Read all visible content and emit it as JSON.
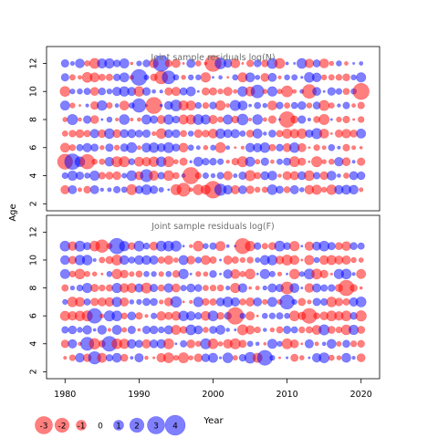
{
  "chart_data": {
    "type": "scatter",
    "encoding": "bubble residuals: circle area ~ |residual|, red = negative, blue = positive",
    "colors": {
      "negative": "#ff0000",
      "positive": "#0000ff"
    },
    "ylabel": "Age",
    "xlabel": "Year",
    "xlim": [
      1977.5,
      2022.5
    ],
    "xticks": [
      1980,
      1990,
      2000,
      2010,
      2020
    ],
    "legend": {
      "position": "bottom-left",
      "values": [
        -3,
        -2,
        -1,
        0,
        1,
        2,
        3,
        4
      ],
      "labels": [
        "-3",
        "-2",
        "-1",
        "0",
        "1",
        "2",
        "3",
        "4"
      ]
    },
    "panels": [
      {
        "title": "Joint sample residuals log(N)",
        "ylim": [
          1.5,
          13.2
        ],
        "yticks": [
          2,
          4,
          6,
          8,
          10,
          12
        ],
        "years": [
          1980,
          2020
        ],
        "ages": [
          3,
          12
        ]
      },
      {
        "title": "Joint sample residuals log(F)",
        "ylim": [
          1.5,
          13.2
        ],
        "yticks": [
          2,
          4,
          6,
          8,
          10,
          12
        ],
        "years": [
          1980,
          2020
        ],
        "ages": [
          3,
          11
        ]
      }
    ]
  }
}
